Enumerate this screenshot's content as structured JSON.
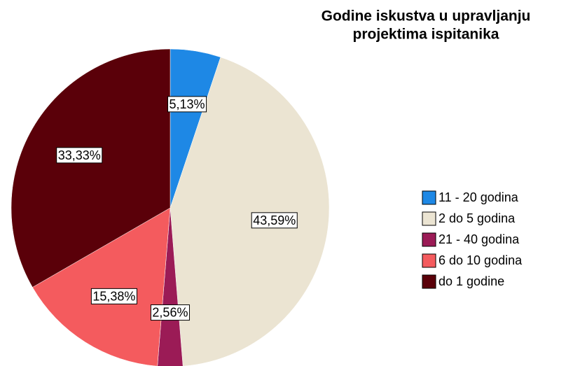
{
  "chart_data": {
    "type": "pie",
    "title": [
      "Godine iskustva u upravljanju",
      "projektima ispitanika"
    ],
    "categories": [
      "11 - 20 godina",
      "2 do 5 godina",
      "21 - 40 godina",
      "6 do 10 godina",
      "do 1 godine"
    ],
    "values": [
      5.13,
      43.59,
      2.56,
      15.38,
      33.33
    ],
    "value_labels": [
      "5,13%",
      "43,59%",
      "2,56%",
      "15,38%",
      "33,33%"
    ],
    "colors": [
      "#1e88e5",
      "#ebe4d2",
      "#9b1b56",
      "#f45b5e",
      "#5a0009"
    ],
    "legend": "right"
  }
}
